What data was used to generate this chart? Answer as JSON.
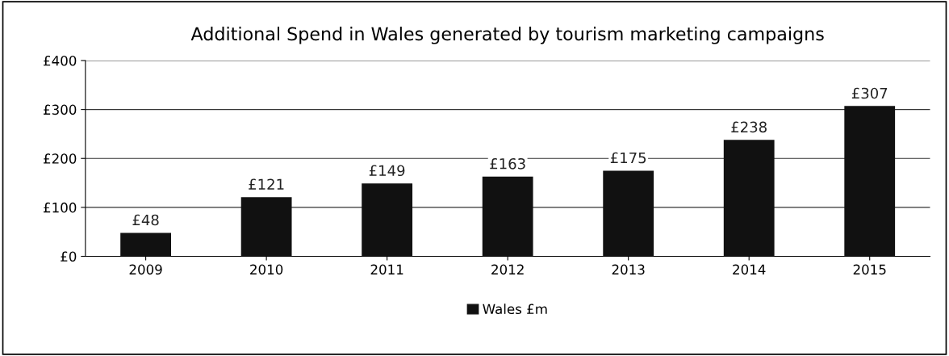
{
  "chart_data": {
    "type": "bar",
    "title": "Additional Spend in Wales generated by tourism marketing campaigns",
    "categories": [
      "2009",
      "2010",
      "2011",
      "2012",
      "2013",
      "2014",
      "2015"
    ],
    "series": [
      {
        "name": "Wales £m",
        "color": "#111111",
        "values": [
          48,
          121,
          149,
          163,
          175,
          238,
          307
        ],
        "value_labels": [
          "£48",
          "£121",
          "£149",
          "£163",
          "£175",
          "£238",
          "£307"
        ]
      }
    ],
    "ylim": [
      0,
      400
    ],
    "yticks": [
      {
        "value": 0,
        "label": "£0"
      },
      {
        "value": 100,
        "label": "£100"
      },
      {
        "value": 200,
        "label": "£200"
      },
      {
        "value": 300,
        "label": "£300"
      },
      {
        "value": 400,
        "label": "£400"
      }
    ],
    "grid": "y",
    "legend": "bottom"
  }
}
